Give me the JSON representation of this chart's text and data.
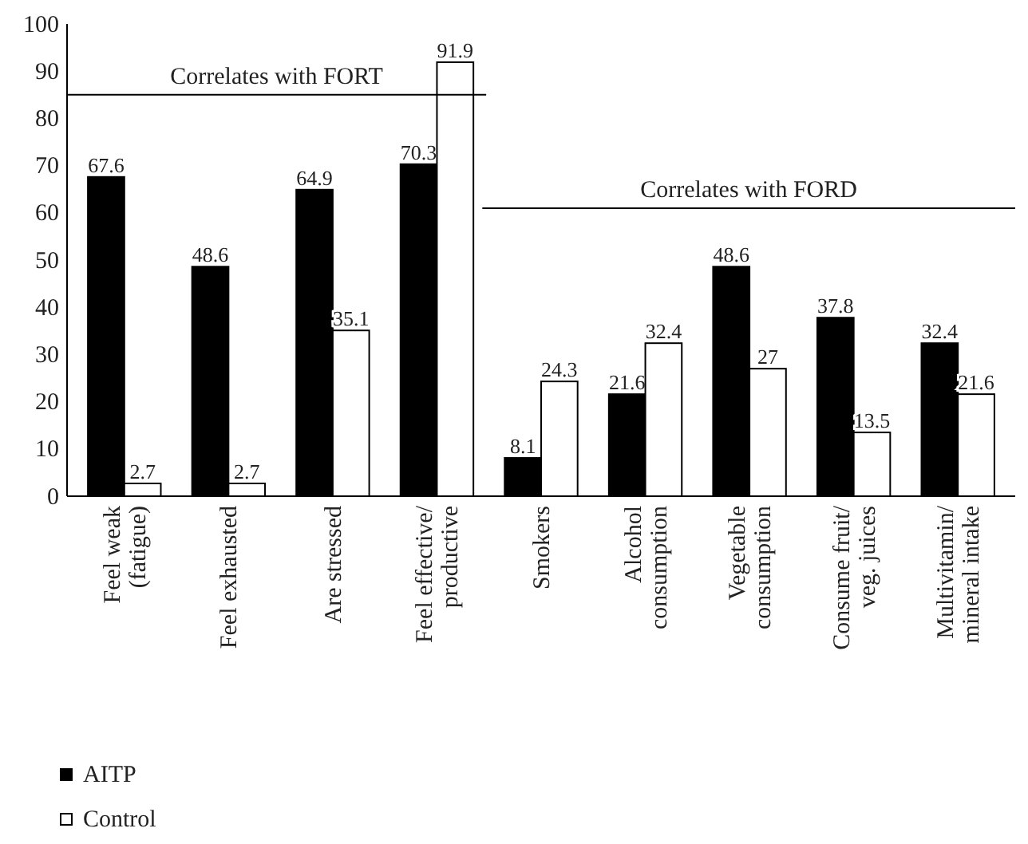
{
  "chart_data": {
    "type": "bar",
    "categories": [
      "Feel weak\n(fatigue)",
      "Feel exhausted",
      "Are stressed",
      "Feel effective/\nproductive",
      "Smokers",
      "Alcohol\nconsumption",
      "Vegetable\nconsumption",
      "Consume fruit/\nveg. juices",
      "Multivitamin/\nmineral intake"
    ],
    "series": [
      {
        "name": "AITP",
        "color": "#000000",
        "values": [
          67.6,
          48.6,
          64.9,
          70.3,
          8.1,
          21.6,
          48.6,
          37.8,
          32.4
        ]
      },
      {
        "name": "Control",
        "color": "#ffffff",
        "values": [
          2.7,
          2.7,
          35.1,
          91.9,
          24.3,
          32.4,
          27,
          13.5,
          21.6
        ]
      }
    ],
    "ylim": [
      0,
      100
    ],
    "yticks": [
      0,
      10,
      20,
      30,
      40,
      50,
      60,
      70,
      80,
      90,
      100
    ],
    "ref_lines": [
      {
        "axis": "y",
        "value": 85,
        "label": "Correlates with FORT"
      },
      {
        "axis": "y",
        "value": 61,
        "label": "Correlates with FORD"
      }
    ],
    "data_labels": true,
    "legend": "bottom left"
  }
}
